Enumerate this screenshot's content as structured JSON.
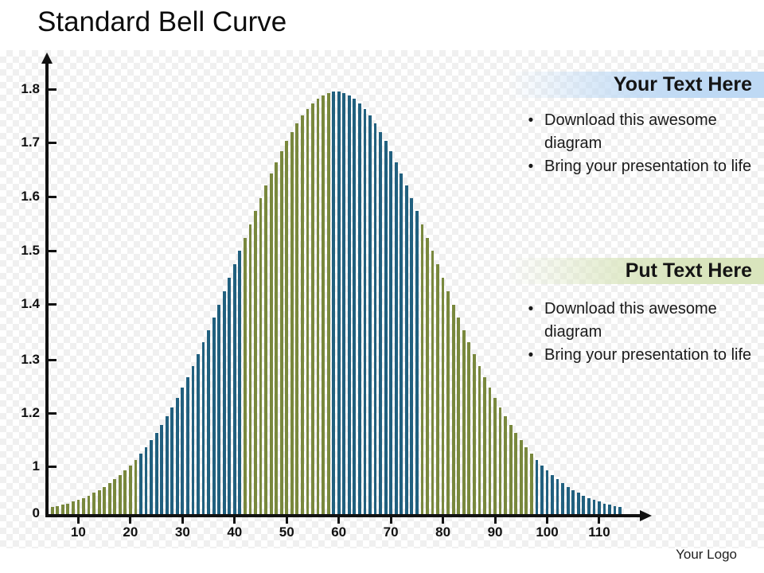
{
  "slide": {
    "title": "Standard Bell Curve",
    "logo_text": "Your Logo"
  },
  "chart_data": {
    "type": "bar",
    "title": "Standard Bell Curve",
    "description": "Dense histogram of thin vertical bars forming a normal (Gaussian) bell curve",
    "x_ticks": [
      10,
      20,
      30,
      40,
      50,
      60,
      70,
      80,
      90,
      100,
      110
    ],
    "y_ticks": [
      "1.8",
      "1.7",
      "1.6",
      "1.5",
      "1.4",
      "1.3",
      "1.2",
      "1",
      "0"
    ],
    "y_axis_note": "tick labels printed at equal spacing exactly as shown (non-linear scale: 0, 1, 1.2 ... 1.8)",
    "x_range": [
      5,
      114
    ],
    "bar_step": 1,
    "curve": {
      "shape": "gaussian",
      "mean": 59.5,
      "sigma": 19,
      "peak_axis_value": 1.79
    },
    "bar_colors": {
      "green": "#79883d",
      "blue": "#21607f"
    },
    "color_groups": [
      {
        "from": 5,
        "to": 21,
        "color": "green"
      },
      {
        "from": 22,
        "to": 41,
        "color": "blue"
      },
      {
        "from": 42,
        "to": 58,
        "color": "green"
      },
      {
        "from": 59,
        "to": 75,
        "color": "blue"
      },
      {
        "from": 76,
        "to": 97,
        "color": "green"
      },
      {
        "from": 98,
        "to": 114,
        "color": "blue"
      }
    ],
    "axis_color": "#111111",
    "legend": "none",
    "grid": "off"
  },
  "text_panels": [
    {
      "header": "Your Text Here",
      "accent": "#bed9f4",
      "items": [
        "Download this awesome diagram",
        "Bring your presentation to life"
      ]
    },
    {
      "header": "Put Text Here",
      "accent": "#d9e5bd",
      "items": [
        "Download this awesome diagram",
        "Bring your presentation to life"
      ]
    }
  ],
  "bullet_glyph": "•"
}
